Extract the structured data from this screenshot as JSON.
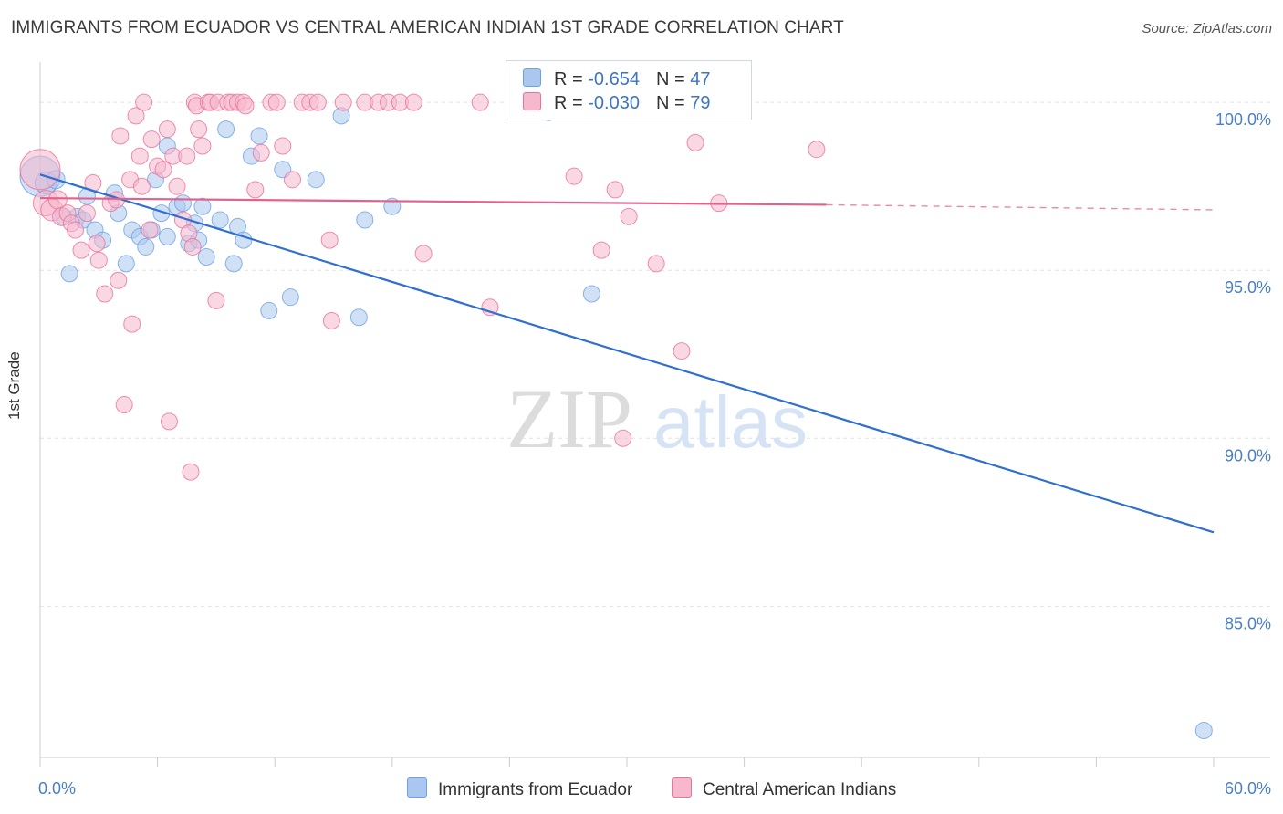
{
  "header": {
    "title": "IMMIGRANTS FROM ECUADOR VS CENTRAL AMERICAN INDIAN 1ST GRADE CORRELATION CHART",
    "source": "Source: ZipAtlas.com"
  },
  "watermark": {
    "zip": "ZIP",
    "atlas": "atlas"
  },
  "legend": {
    "rows": [
      {
        "r_label": "R = ",
        "r_value": "-0.654",
        "n_label": "N = ",
        "n_value": "47",
        "color": "#aac8ef"
      },
      {
        "r_label": "R = ",
        "r_value": "-0.030",
        "n_label": "N = ",
        "n_value": "79",
        "color": "#f5b8cc"
      }
    ]
  },
  "bottom_legend": [
    {
      "label": "Immigrants from Ecuador",
      "color": "#aac8ef"
    },
    {
      "label": "Central American Indians",
      "color": "#f5b8cc"
    }
  ],
  "chart_data": {
    "type": "scatter",
    "title": "IMMIGRANTS FROM ECUADOR VS CENTRAL AMERICAN INDIAN 1ST GRADE CORRELATION CHART",
    "xlabel": "",
    "ylabel": "1st Grade",
    "xlim": [
      0,
      60
    ],
    "ylim": [
      80.5,
      101.2
    ],
    "x_tick_labels": [
      "0.0%",
      "60.0%"
    ],
    "y_ticks": [
      85,
      90,
      95,
      100
    ],
    "y_tick_labels": [
      "85.0%",
      "90.0%",
      "95.0%",
      "100.0%"
    ],
    "grid": true,
    "legend_position": "top-center",
    "series": [
      {
        "name": "Immigrants from Ecuador",
        "color": "#6ea0e6",
        "fill": "#aac8ef",
        "r": -0.654,
        "n": 47,
        "trend": {
          "x0": 0,
          "y0": 97.85,
          "x1": 60,
          "y1": 87.2
        },
        "points": [
          [
            0.0,
            97.8,
            22
          ],
          [
            0.3,
            97.6,
            12
          ],
          [
            0.8,
            97.7,
            10
          ],
          [
            1.2,
            96.6,
            9
          ],
          [
            1.5,
            94.9,
            9
          ],
          [
            1.9,
            96.6,
            9
          ],
          [
            2.2,
            96.5,
            9
          ],
          [
            2.4,
            97.2,
            9
          ],
          [
            2.8,
            96.2,
            9
          ],
          [
            3.2,
            95.9,
            9
          ],
          [
            3.8,
            97.3,
            9
          ],
          [
            4.0,
            96.7,
            9
          ],
          [
            4.4,
            95.2,
            9
          ],
          [
            4.7,
            96.2,
            9
          ],
          [
            5.1,
            96.0,
            9
          ],
          [
            5.4,
            95.7,
            9
          ],
          [
            5.7,
            96.2,
            9
          ],
          [
            5.9,
            97.7,
            9
          ],
          [
            6.2,
            96.7,
            9
          ],
          [
            6.5,
            96.0,
            9
          ],
          [
            6.5,
            98.7,
            9
          ],
          [
            7.0,
            96.9,
            9
          ],
          [
            7.3,
            97.0,
            9
          ],
          [
            7.6,
            95.8,
            9
          ],
          [
            7.9,
            96.4,
            9
          ],
          [
            8.1,
            95.9,
            9
          ],
          [
            8.3,
            96.9,
            9
          ],
          [
            8.5,
            95.4,
            9
          ],
          [
            9.2,
            96.5,
            9
          ],
          [
            9.5,
            99.2,
            9
          ],
          [
            9.9,
            95.2,
            9
          ],
          [
            10.1,
            96.3,
            9
          ],
          [
            10.4,
            95.9,
            9
          ],
          [
            10.8,
            98.4,
            9
          ],
          [
            11.2,
            99.0,
            9
          ],
          [
            11.7,
            93.8,
            9
          ],
          [
            12.4,
            98.0,
            9
          ],
          [
            12.8,
            94.2,
            9
          ],
          [
            14.1,
            97.7,
            9
          ],
          [
            15.4,
            99.6,
            9
          ],
          [
            16.3,
            93.6,
            9
          ],
          [
            16.6,
            96.5,
            9
          ],
          [
            18.0,
            96.9,
            9
          ],
          [
            26.0,
            99.7,
            9
          ],
          [
            28.2,
            94.3,
            9
          ],
          [
            59.5,
            81.3,
            9
          ]
        ]
      },
      {
        "name": "Central American Indians",
        "color": "#e8729b",
        "fill": "#f5b8cc",
        "r": -0.03,
        "n": 79,
        "trend": {
          "x0": 0,
          "y0": 97.15,
          "x1": 40.2,
          "y1": 96.95,
          "dash_x1": 60,
          "dash_y1": 96.8
        },
        "points": [
          [
            0.0,
            98.0,
            22
          ],
          [
            0.3,
            97.0,
            14
          ],
          [
            0.6,
            96.8,
            12
          ],
          [
            0.9,
            97.1,
            10
          ],
          [
            1.1,
            96.6,
            10
          ],
          [
            1.4,
            96.7,
            9
          ],
          [
            1.6,
            96.4,
            9
          ],
          [
            1.8,
            96.2,
            9
          ],
          [
            2.1,
            95.6,
            9
          ],
          [
            2.4,
            96.7,
            9
          ],
          [
            2.7,
            97.6,
            9
          ],
          [
            2.9,
            95.8,
            9
          ],
          [
            3.0,
            95.3,
            9
          ],
          [
            3.3,
            94.3,
            9
          ],
          [
            3.6,
            97.0,
            9
          ],
          [
            3.9,
            97.1,
            9
          ],
          [
            4.0,
            94.7,
            9
          ],
          [
            4.1,
            99.0,
            9
          ],
          [
            4.3,
            91.0,
            9
          ],
          [
            4.6,
            97.7,
            9
          ],
          [
            4.7,
            93.4,
            9
          ],
          [
            4.9,
            99.6,
            9
          ],
          [
            5.1,
            98.4,
            9
          ],
          [
            5.2,
            97.5,
            9
          ],
          [
            5.3,
            100.0,
            9
          ],
          [
            5.6,
            96.2,
            9
          ],
          [
            5.7,
            98.9,
            9
          ],
          [
            6.0,
            98.1,
            9
          ],
          [
            6.3,
            98.0,
            9
          ],
          [
            6.5,
            99.2,
            9
          ],
          [
            6.6,
            90.5,
            9
          ],
          [
            6.8,
            98.4,
            9
          ],
          [
            7.0,
            97.5,
            9
          ],
          [
            7.3,
            96.5,
            9
          ],
          [
            7.5,
            98.4,
            9
          ],
          [
            7.6,
            96.1,
            9
          ],
          [
            7.7,
            89.0,
            9
          ],
          [
            7.8,
            95.7,
            9
          ],
          [
            7.9,
            100.0,
            9
          ],
          [
            8.0,
            99.9,
            9
          ],
          [
            8.1,
            99.2,
            9
          ],
          [
            8.3,
            98.7,
            9
          ],
          [
            8.6,
            100.0,
            9
          ],
          [
            8.7,
            100.0,
            9
          ],
          [
            9.0,
            94.1,
            9
          ],
          [
            9.1,
            100.0,
            9
          ],
          [
            9.6,
            100.0,
            9
          ],
          [
            9.8,
            100.0,
            9
          ],
          [
            10.1,
            100.0,
            9
          ],
          [
            10.4,
            100.0,
            9
          ],
          [
            10.5,
            99.9,
            9
          ],
          [
            11.0,
            97.4,
            9
          ],
          [
            11.3,
            98.5,
            9
          ],
          [
            11.8,
            100.0,
            9
          ],
          [
            12.1,
            100.0,
            9
          ],
          [
            12.4,
            98.7,
            9
          ],
          [
            12.9,
            97.7,
            9
          ],
          [
            13.4,
            100.0,
            9
          ],
          [
            13.8,
            100.0,
            9
          ],
          [
            14.2,
            100.0,
            9
          ],
          [
            14.8,
            95.9,
            9
          ],
          [
            14.9,
            93.5,
            9
          ],
          [
            15.5,
            100.0,
            9
          ],
          [
            16.6,
            100.0,
            9
          ],
          [
            17.3,
            100.0,
            9
          ],
          [
            17.8,
            100.0,
            9
          ],
          [
            18.4,
            100.0,
            9
          ],
          [
            19.1,
            100.0,
            9
          ],
          [
            19.6,
            95.5,
            9
          ],
          [
            22.5,
            100.0,
            9
          ],
          [
            23.0,
            93.9,
            9
          ],
          [
            27.3,
            97.8,
            9
          ],
          [
            28.7,
            95.6,
            9
          ],
          [
            29.4,
            97.4,
            9
          ],
          [
            29.8,
            90.0,
            9
          ],
          [
            30.1,
            96.6,
            9
          ],
          [
            31.5,
            95.2,
            9
          ],
          [
            32.8,
            92.6,
            9
          ],
          [
            33.5,
            98.8,
            9
          ],
          [
            34.7,
            97.0,
            9
          ],
          [
            39.7,
            98.6,
            9
          ]
        ]
      }
    ]
  }
}
